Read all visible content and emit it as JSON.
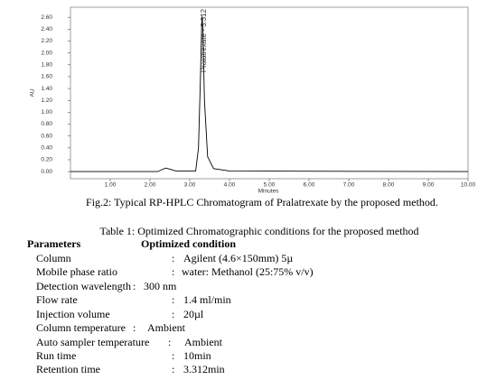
{
  "chart_data": {
    "type": "line",
    "x": [
      0,
      2.2,
      2.32,
      2.4,
      2.5,
      2.65,
      3.15,
      3.22,
      3.27,
      3.3,
      3.312,
      3.33,
      3.37,
      3.45,
      3.6,
      4.0,
      10
    ],
    "values": [
      0,
      0,
      0.04,
      0.06,
      0.04,
      0.01,
      0.01,
      0.4,
      1.6,
      2.45,
      2.62,
      2.4,
      1.2,
      0.25,
      0.05,
      0.01,
      0
    ],
    "color": "#000000",
    "xlim": [
      0,
      10
    ],
    "ylim": [
      -0.12,
      2.77
    ],
    "xticks": [
      {
        "value": 1,
        "label": "1.00"
      },
      {
        "value": 2,
        "label": "2.00"
      },
      {
        "value": 3,
        "label": "3.00"
      },
      {
        "value": 4,
        "label": "4.00"
      },
      {
        "value": 5,
        "label": "5.00"
      },
      {
        "value": 6,
        "label": "6.00"
      },
      {
        "value": 7,
        "label": "7.00"
      },
      {
        "value": 8,
        "label": "8.00"
      },
      {
        "value": 9,
        "label": "9.00"
      },
      {
        "value": 10,
        "label": "10.00"
      }
    ],
    "yticks": [
      {
        "value": 0,
        "label": "0.00"
      },
      {
        "value": 0.2,
        "label": "0.20"
      },
      {
        "value": 0.4,
        "label": "0.40"
      },
      {
        "value": 0.6,
        "label": "0.60"
      },
      {
        "value": 0.8,
        "label": "0.80"
      },
      {
        "value": 1,
        "label": "1.00"
      },
      {
        "value": 1.2,
        "label": "1.20"
      },
      {
        "value": 1.4,
        "label": "1.40"
      },
      {
        "value": 1.6,
        "label": "1.60"
      },
      {
        "value": 1.8,
        "label": "1.80"
      },
      {
        "value": 2,
        "label": "2.00"
      },
      {
        "value": 2.2,
        "label": "2.20"
      },
      {
        "value": 2.4,
        "label": "2.40"
      },
      {
        "value": 2.6,
        "label": "2.60"
      }
    ],
    "xlabel": "Minutes",
    "ylabel": "AU",
    "annotation": "Pralatrexate - 3.312"
  },
  "figure_caption": "Fig.2: Typical RP-HPLC Chromatogram of Pralatrexate by the proposed method.",
  "table": {
    "title": "Table 1: Optimized Chromatographic conditions for the proposed method",
    "header": [
      "Parameters",
      "Optimized condition"
    ],
    "rows": [
      [
        "Column",
        ":",
        "Agilent (4.6×150mm) 5µ"
      ],
      [
        "Mobile phase ratio",
        ":",
        "water: Methanol (25:75% v/v)"
      ],
      [
        "Detection wavelength",
        ":",
        "300 nm"
      ],
      [
        "Flow rate",
        ":",
        "1.4 ml/min"
      ],
      [
        "Injection volume",
        ":",
        "20µl"
      ],
      [
        "Column temperature",
        ":",
        "Ambient"
      ],
      [
        "Auto sampler temperature",
        ":",
        "Ambient"
      ],
      [
        "Run time",
        ":",
        "10min"
      ],
      [
        "Retention time",
        ":",
        "3.312min"
      ]
    ]
  }
}
